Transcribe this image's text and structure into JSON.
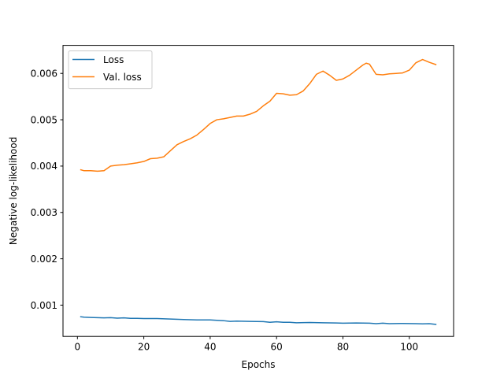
{
  "chart_data": {
    "type": "line",
    "xlabel": "Epochs",
    "ylabel": "Negative log-likelihood",
    "xlim": [
      -4.35,
      113.35
    ],
    "ylim": [
      0.000325,
      0.006605
    ],
    "xticks": [
      0,
      20,
      40,
      60,
      80,
      100
    ],
    "xtick_labels": [
      "0",
      "20",
      "40",
      "60",
      "80",
      "100"
    ],
    "yticks": [
      0.001,
      0.002,
      0.003,
      0.004,
      0.005,
      0.006
    ],
    "ytick_labels": [
      "0.001",
      "0.002",
      "0.003",
      "0.004",
      "0.005",
      "0.006"
    ],
    "grid": false,
    "legend": "top-left",
    "series": [
      {
        "name": "Loss",
        "color": "#1f77b4",
        "x": [
          1,
          2,
          4,
          6,
          8,
          10,
          12,
          14,
          16,
          18,
          20,
          24,
          28,
          32,
          36,
          40,
          44,
          46,
          48,
          52,
          56,
          58,
          60,
          62,
          64,
          66,
          70,
          74,
          78,
          80,
          84,
          88,
          90,
          92,
          94,
          98,
          102,
          104,
          106,
          108
        ],
        "y": [
          0.00075,
          0.00074,
          0.000735,
          0.00073,
          0.000725,
          0.00073,
          0.00072,
          0.000725,
          0.000715,
          0.000715,
          0.00071,
          0.00071,
          0.0007,
          0.00069,
          0.00068,
          0.00068,
          0.000665,
          0.00065,
          0.000655,
          0.00065,
          0.000645,
          0.00063,
          0.00064,
          0.00063,
          0.00063,
          0.00062,
          0.000625,
          0.00062,
          0.000615,
          0.00061,
          0.000615,
          0.00061,
          0.0006,
          0.00061,
          0.0006,
          0.000605,
          0.0006,
          0.000595,
          0.0006,
          0.000585
        ]
      },
      {
        "name": "Val. loss",
        "color": "#ff7f0e",
        "x": [
          1,
          2,
          4,
          6,
          8,
          10,
          12,
          14,
          16,
          18,
          20,
          22,
          24,
          26,
          28,
          30,
          32,
          34,
          36,
          38,
          40,
          42,
          44,
          46,
          48,
          50,
          52,
          54,
          56,
          58,
          60,
          62,
          64,
          66,
          68,
          70,
          72,
          74,
          76,
          78,
          80,
          82,
          84,
          86,
          87,
          88,
          90,
          92,
          94,
          96,
          98,
          100,
          102,
          104,
          106,
          108
        ],
        "y": [
          0.00392,
          0.0039,
          0.0039,
          0.00389,
          0.0039,
          0.004,
          0.00402,
          0.00403,
          0.00405,
          0.00407,
          0.0041,
          0.00416,
          0.00417,
          0.0042,
          0.00433,
          0.00446,
          0.00453,
          0.00459,
          0.00467,
          0.00479,
          0.00492,
          0.005,
          0.00502,
          0.00505,
          0.00508,
          0.00508,
          0.00512,
          0.00518,
          0.0053,
          0.0054,
          0.00557,
          0.00556,
          0.00553,
          0.00554,
          0.00562,
          0.00578,
          0.00598,
          0.00605,
          0.00596,
          0.00585,
          0.00588,
          0.00596,
          0.00607,
          0.00618,
          0.00622,
          0.0062,
          0.00598,
          0.00597,
          0.00599,
          0.006,
          0.00601,
          0.00607,
          0.00623,
          0.0063,
          0.00624,
          0.00619
        ]
      }
    ]
  }
}
